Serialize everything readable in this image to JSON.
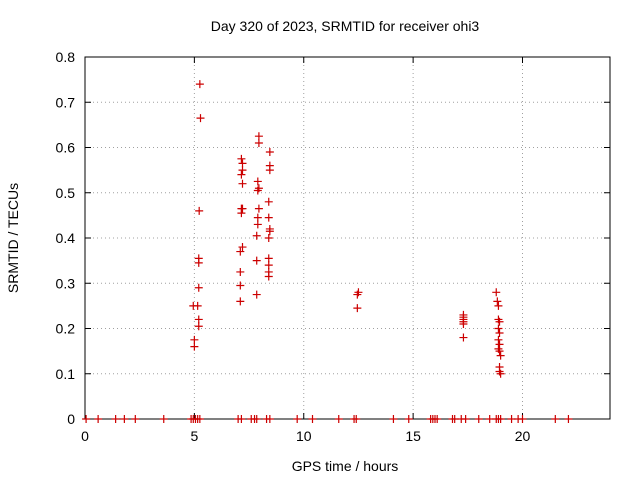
{
  "chart_data": {
    "type": "scatter",
    "title": "Day 320 of 2023, SRMTID for receiver ohi3",
    "xlabel": "GPS time / hours",
    "ylabel": "SRMTID / TECUs",
    "xlim": [
      0,
      24
    ],
    "ylim": [
      0,
      0.8
    ],
    "xticks": [
      0,
      5,
      10,
      15,
      20
    ],
    "xtick_labels": [
      "0",
      "5",
      "10",
      "15",
      "20"
    ],
    "yticks": [
      0,
      0.1,
      0.2,
      0.3,
      0.4,
      0.5,
      0.6,
      0.7,
      0.8
    ],
    "ytick_labels": [
      "0",
      "0.1",
      "0.2",
      "0.3",
      "0.4",
      "0.5",
      "0.6",
      "0.7",
      "0.8"
    ],
    "grid": true,
    "marker": "+",
    "color": "#cc0000",
    "series": [
      {
        "name": "SRMTID",
        "points": [
          [
            0.05,
            0
          ],
          [
            0.6,
            0
          ],
          [
            1.4,
            0
          ],
          [
            1.8,
            0
          ],
          [
            2.3,
            0
          ],
          [
            3.6,
            0
          ],
          [
            4.85,
            0
          ],
          [
            4.95,
            0
          ],
          [
            5.05,
            0
          ],
          [
            5.15,
            0
          ],
          [
            5.25,
            0
          ],
          [
            7.0,
            0
          ],
          [
            7.15,
            0
          ],
          [
            7.6,
            0
          ],
          [
            7.75,
            0
          ],
          [
            7.85,
            0
          ],
          [
            8.3,
            0
          ],
          [
            8.45,
            0
          ],
          [
            9.7,
            0
          ],
          [
            10.4,
            0
          ],
          [
            11.6,
            0
          ],
          [
            12.3,
            0
          ],
          [
            12.4,
            0
          ],
          [
            14.1,
            0
          ],
          [
            14.8,
            0
          ],
          [
            15.8,
            0
          ],
          [
            15.9,
            0
          ],
          [
            16.0,
            0
          ],
          [
            16.1,
            0
          ],
          [
            16.8,
            0
          ],
          [
            16.9,
            0
          ],
          [
            17.2,
            0
          ],
          [
            17.4,
            0
          ],
          [
            18.0,
            0
          ],
          [
            18.5,
            0
          ],
          [
            18.8,
            0
          ],
          [
            18.9,
            0
          ],
          [
            19.0,
            0
          ],
          [
            19.5,
            0
          ],
          [
            19.8,
            0
          ],
          [
            20.0,
            0
          ],
          [
            21.5,
            0
          ],
          [
            22.1,
            0
          ],
          [
            4.95,
            0.25
          ],
          [
            5.0,
            0.175
          ],
          [
            5.0,
            0.16
          ],
          [
            5.15,
            0.25
          ],
          [
            5.2,
            0.22
          ],
          [
            5.2,
            0.205
          ],
          [
            5.2,
            0.29
          ],
          [
            5.2,
            0.345
          ],
          [
            5.2,
            0.355
          ],
          [
            5.22,
            0.46
          ],
          [
            5.28,
            0.665
          ],
          [
            5.25,
            0.74
          ],
          [
            7.1,
            0.26
          ],
          [
            7.1,
            0.295
          ],
          [
            7.1,
            0.325
          ],
          [
            7.1,
            0.37
          ],
          [
            7.15,
            0.455
          ],
          [
            7.15,
            0.465
          ],
          [
            7.15,
            0.54
          ],
          [
            7.2,
            0.52
          ],
          [
            7.2,
            0.55
          ],
          [
            7.2,
            0.565
          ],
          [
            7.15,
            0.575
          ],
          [
            7.2,
            0.465
          ],
          [
            7.2,
            0.38
          ],
          [
            7.85,
            0.275
          ],
          [
            7.85,
            0.35
          ],
          [
            7.85,
            0.405
          ],
          [
            7.9,
            0.43
          ],
          [
            7.9,
            0.445
          ],
          [
            7.95,
            0.465
          ],
          [
            7.9,
            0.505
          ],
          [
            7.95,
            0.51
          ],
          [
            7.9,
            0.525
          ],
          [
            7.95,
            0.61
          ],
          [
            7.95,
            0.625
          ],
          [
            8.4,
            0.315
          ],
          [
            8.4,
            0.325
          ],
          [
            8.4,
            0.34
          ],
          [
            8.4,
            0.355
          ],
          [
            8.4,
            0.4
          ],
          [
            8.45,
            0.415
          ],
          [
            8.45,
            0.42
          ],
          [
            8.4,
            0.445
          ],
          [
            8.4,
            0.48
          ],
          [
            8.45,
            0.55
          ],
          [
            8.45,
            0.56
          ],
          [
            8.45,
            0.59
          ],
          [
            12.45,
            0.245
          ],
          [
            12.45,
            0.275
          ],
          [
            12.5,
            0.28
          ],
          [
            17.3,
            0.18
          ],
          [
            17.3,
            0.21
          ],
          [
            17.3,
            0.215
          ],
          [
            17.3,
            0.22
          ],
          [
            17.3,
            0.225
          ],
          [
            17.3,
            0.23
          ],
          [
            18.8,
            0.28
          ],
          [
            18.85,
            0.26
          ],
          [
            18.9,
            0.25
          ],
          [
            18.9,
            0.22
          ],
          [
            18.95,
            0.215
          ],
          [
            18.9,
            0.2
          ],
          [
            18.95,
            0.19
          ],
          [
            18.9,
            0.175
          ],
          [
            18.95,
            0.165
          ],
          [
            18.9,
            0.155
          ],
          [
            18.95,
            0.15
          ],
          [
            19.0,
            0.14
          ],
          [
            18.95,
            0.115
          ],
          [
            18.95,
            0.105
          ],
          [
            19.0,
            0.1
          ]
        ]
      }
    ]
  }
}
